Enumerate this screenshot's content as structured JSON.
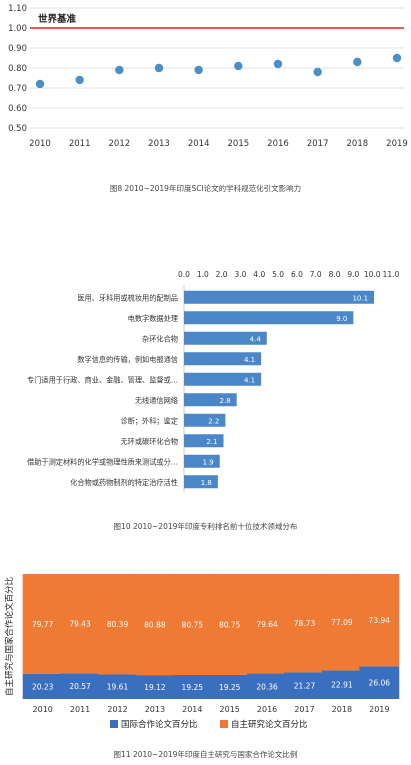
{
  "chart_data": [
    {
      "type": "scatter",
      "title": "",
      "xlabel": "",
      "ylabel": "",
      "x": [
        "2010",
        "2011",
        "2012",
        "2013",
        "2014",
        "2015",
        "2016",
        "2017",
        "2018",
        "2019"
      ],
      "series": [
        {
          "values": [
            0.72,
            0.74,
            0.79,
            0.8,
            0.79,
            0.81,
            0.82,
            0.78,
            0.83,
            0.85
          ],
          "color": "#4a90c8"
        }
      ],
      "yticks": [
        "0.50",
        "0.60",
        "0.70",
        "0.80",
        "0.90",
        "1.00",
        "1.10"
      ],
      "ylim": [
        0.5,
        1.1
      ],
      "reference_line": {
        "value": 1.0,
        "label": "世界基准",
        "color": "#e02020"
      },
      "grid": true,
      "caption": "图8  2010~2019年印度SCI论文的学科规范化引文影响力"
    },
    {
      "type": "bar",
      "orientation": "horizontal",
      "title": "",
      "categories": [
        "医用、牙科用或梳妆用的配制品",
        "电数字数据处理",
        "杂环化合物",
        "数字信息的传输，例如电报通信",
        "专门适用于行政、商业、金融、管理、监督或…",
        "无线通信网络",
        "诊断；外科；鉴定",
        "无环或碳环化合物",
        "借助于测定材料的化学或物理性质来测试或分…",
        "化合物或药物制剂的特定治疗活性"
      ],
      "values": [
        10.1,
        9.0,
        4.4,
        4.1,
        4.1,
        2.8,
        2.2,
        2.1,
        1.9,
        1.8
      ],
      "value_labels": [
        "10.1",
        "9.0",
        "4.4",
        "4.1",
        "4.1",
        "2.8",
        "2.2",
        "2.1",
        "1.9",
        "1.8"
      ],
      "xticks": [
        "0.0",
        "1.0",
        "2.0",
        "3.0",
        "4.0",
        "5.0",
        "6.0",
        "7.0",
        "8.0",
        "9.0",
        "10.0",
        "11.0"
      ],
      "xlim": [
        0,
        11
      ],
      "color": "#4a86c8",
      "caption": "图10  2010~2019年印度专利排名前十位技术领域分布"
    },
    {
      "type": "bar",
      "stacked": true,
      "title": "",
      "ylabel": "自主研究与国家合作论文百分比",
      "categories": [
        "2010",
        "2011",
        "2012",
        "2013",
        "2014",
        "2015",
        "2016",
        "2017",
        "2018",
        "2019"
      ],
      "series": [
        {
          "name": "国际合作论文百分比",
          "color": "#3a6fbf",
          "values": [
            20.23,
            20.57,
            19.61,
            19.12,
            19.25,
            19.25,
            20.36,
            21.27,
            22.91,
            26.06
          ],
          "labels": [
            "20.23",
            "20.57",
            "19.61",
            "19.12",
            "19.25",
            "19.25",
            "20.36",
            "21.27",
            "22.91",
            "26.06"
          ]
        },
        {
          "name": "自主研究论文百分比",
          "color": "#ee7a33",
          "values": [
            79.77,
            79.43,
            80.39,
            80.88,
            80.75,
            80.75,
            79.64,
            78.73,
            77.09,
            73.94
          ],
          "labels": [
            "79.77",
            "79.43",
            "80.39",
            "80.88",
            "80.75",
            "80.75",
            "79.64",
            "78.73",
            "77.09",
            "73.94"
          ]
        }
      ],
      "ylim": [
        0,
        100
      ],
      "legend": "bottom",
      "caption": "图11  2010~2019年印度自主研究与国家合作论文比例"
    }
  ]
}
